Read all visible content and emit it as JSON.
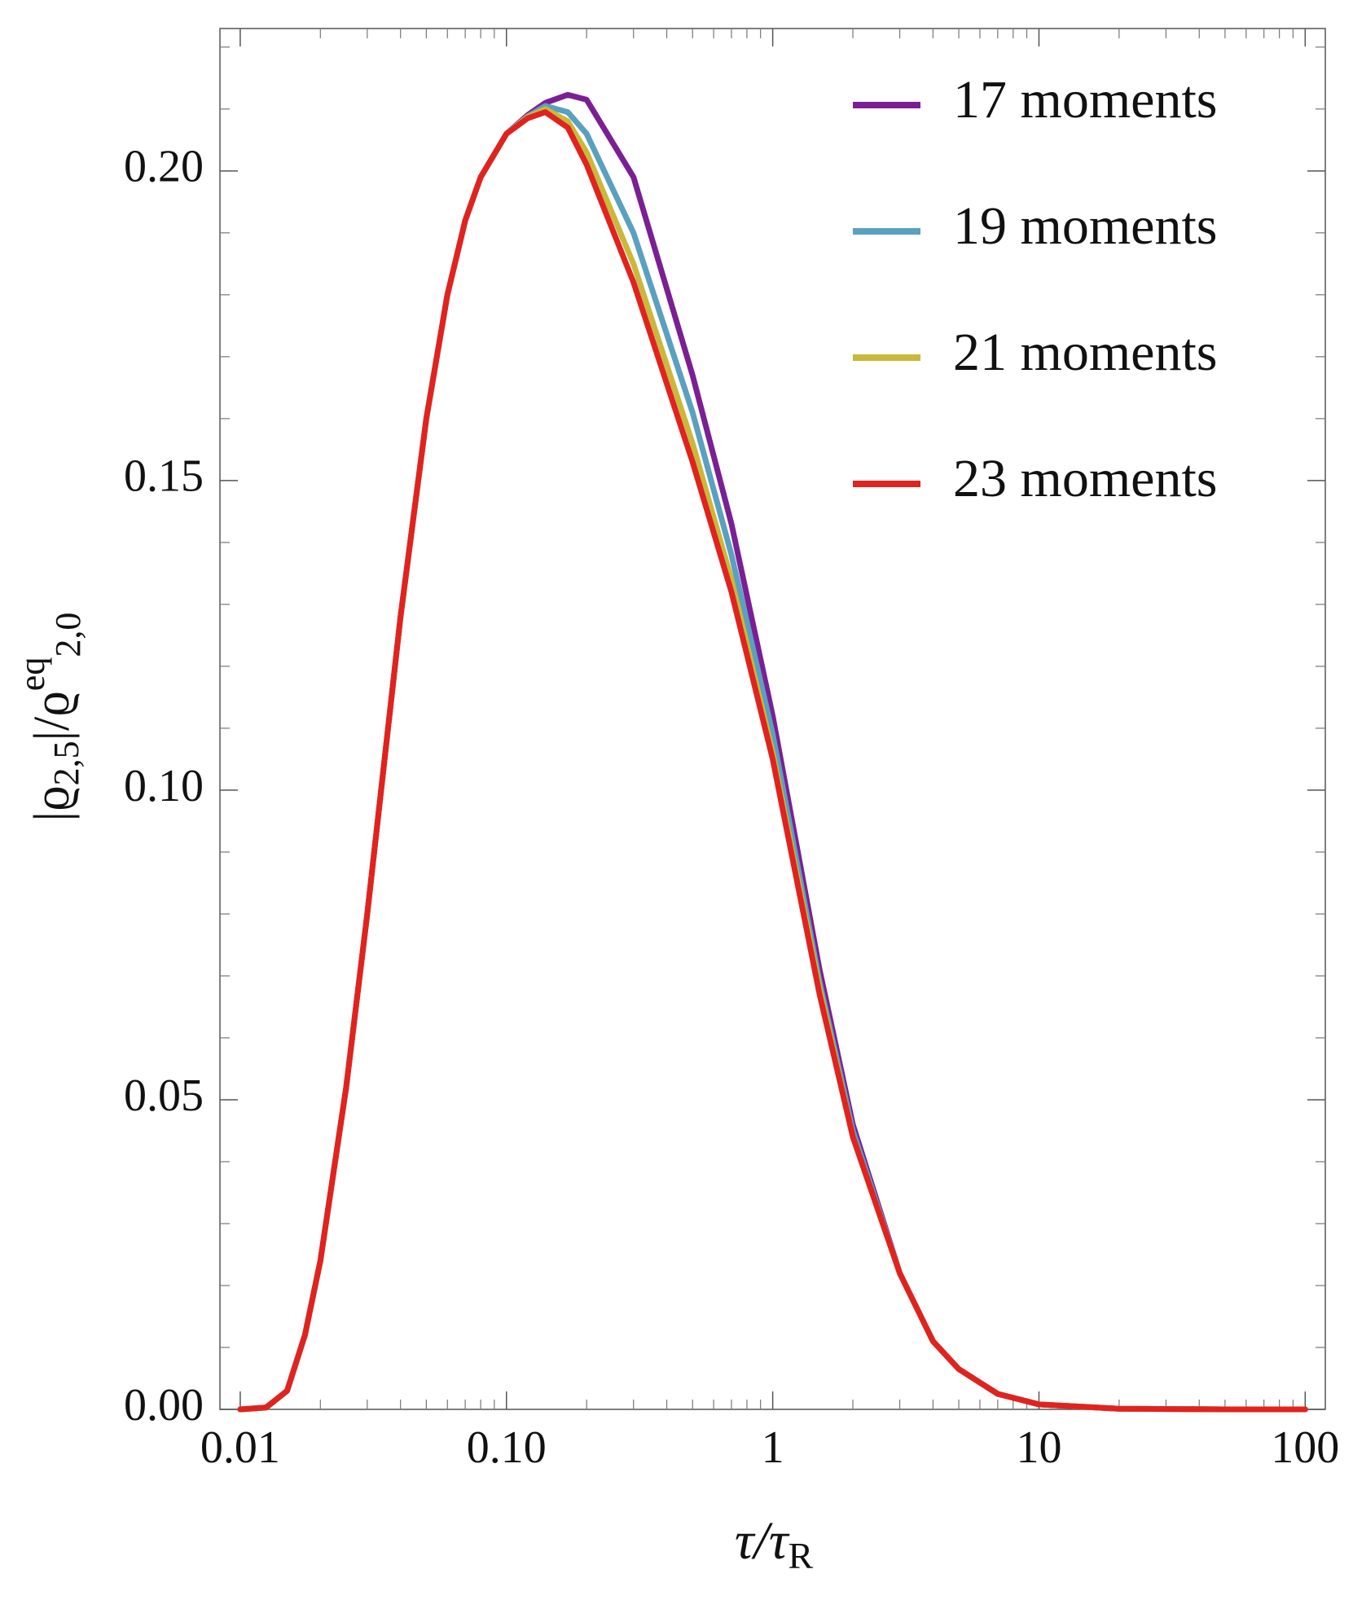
{
  "chart_data": {
    "type": "line",
    "x_label": [
      "τ/τ",
      "R"
    ],
    "y_label": [
      "|ϱ",
      "2,5",
      "|/ϱ",
      "eq",
      "2,0"
    ],
    "x": [
      0.01,
      0.0125,
      0.015,
      0.0175,
      0.02,
      0.025,
      0.03,
      0.04,
      0.05,
      0.06,
      0.07,
      0.08,
      0.1,
      0.12,
      0.14,
      0.17,
      0.2,
      0.3,
      0.5,
      0.7,
      1,
      1.5,
      2,
      3,
      4,
      5,
      7,
      10,
      20,
      50,
      100
    ],
    "series": [
      {
        "name": "17 moments",
        "color": "#7b1f94",
        "values": [
          0,
          0.0003,
          0.003,
          0.012,
          0.024,
          0.052,
          0.08,
          0.128,
          0.16,
          0.18,
          0.192,
          0.199,
          0.206,
          0.209,
          0.211,
          0.2123,
          0.2115,
          0.199,
          0.167,
          0.143,
          0.112,
          0.071,
          0.046,
          0.022,
          0.011,
          0.0065,
          0.0025,
          0.0008,
          0.0001,
          0,
          0
        ]
      },
      {
        "name": "19 moments",
        "color": "#5aa0c0",
        "values": [
          0,
          0.0003,
          0.003,
          0.012,
          0.024,
          0.052,
          0.08,
          0.128,
          0.16,
          0.18,
          0.192,
          0.199,
          0.206,
          0.2088,
          0.2105,
          0.2095,
          0.206,
          0.19,
          0.161,
          0.138,
          0.109,
          0.069,
          0.045,
          0.022,
          0.011,
          0.0065,
          0.0025,
          0.0008,
          0.0001,
          0,
          0
        ]
      },
      {
        "name": "21 moments",
        "color": "#c9b83c",
        "values": [
          0,
          0.0003,
          0.003,
          0.012,
          0.024,
          0.052,
          0.08,
          0.128,
          0.16,
          0.18,
          0.192,
          0.199,
          0.206,
          0.2087,
          0.21,
          0.208,
          0.203,
          0.185,
          0.156,
          0.134,
          0.106,
          0.068,
          0.044,
          0.022,
          0.011,
          0.0065,
          0.0025,
          0.0008,
          0.0001,
          0,
          0
        ]
      },
      {
        "name": "23 moments",
        "color": "#e0231f",
        "values": [
          0,
          0.0003,
          0.003,
          0.012,
          0.024,
          0.052,
          0.08,
          0.128,
          0.16,
          0.18,
          0.192,
          0.199,
          0.206,
          0.2085,
          0.2095,
          0.207,
          0.201,
          0.182,
          0.153,
          0.132,
          0.105,
          0.067,
          0.044,
          0.022,
          0.011,
          0.0065,
          0.0025,
          0.0008,
          0.0001,
          0,
          0
        ]
      }
    ],
    "x_log": true,
    "xlim": [
      0.00839,
      119
    ],
    "ylim": [
      0,
      0.223
    ],
    "xticks": [
      0.01,
      {
        "value": 0.1,
        "label": "0.10"
      },
      1,
      10,
      100
    ],
    "yticks": [
      {
        "value": 0,
        "label": "0.00"
      },
      0.05,
      {
        "value": 0.1,
        "label": "0.10"
      },
      0.15,
      {
        "value": 0.2,
        "label": "0.20"
      }
    ],
    "xminor": [
      0.02,
      0.03,
      0.04,
      0.05,
      0.06,
      0.07,
      0.08,
      0.09,
      0.2,
      0.3,
      0.4,
      0.5,
      0.6,
      0.7,
      0.8,
      0.9,
      2,
      3,
      4,
      5,
      6,
      7,
      8,
      9,
      20,
      30,
      40,
      50,
      60,
      70,
      80,
      90
    ],
    "yminor": [
      0.01,
      0.02,
      0.03,
      0.04,
      0.06,
      0.07,
      0.08,
      0.09,
      0.11,
      0.12,
      0.13,
      0.14,
      0.16,
      0.17,
      0.18,
      0.19,
      0.21,
      0.22
    ],
    "legend": "top-right"
  }
}
